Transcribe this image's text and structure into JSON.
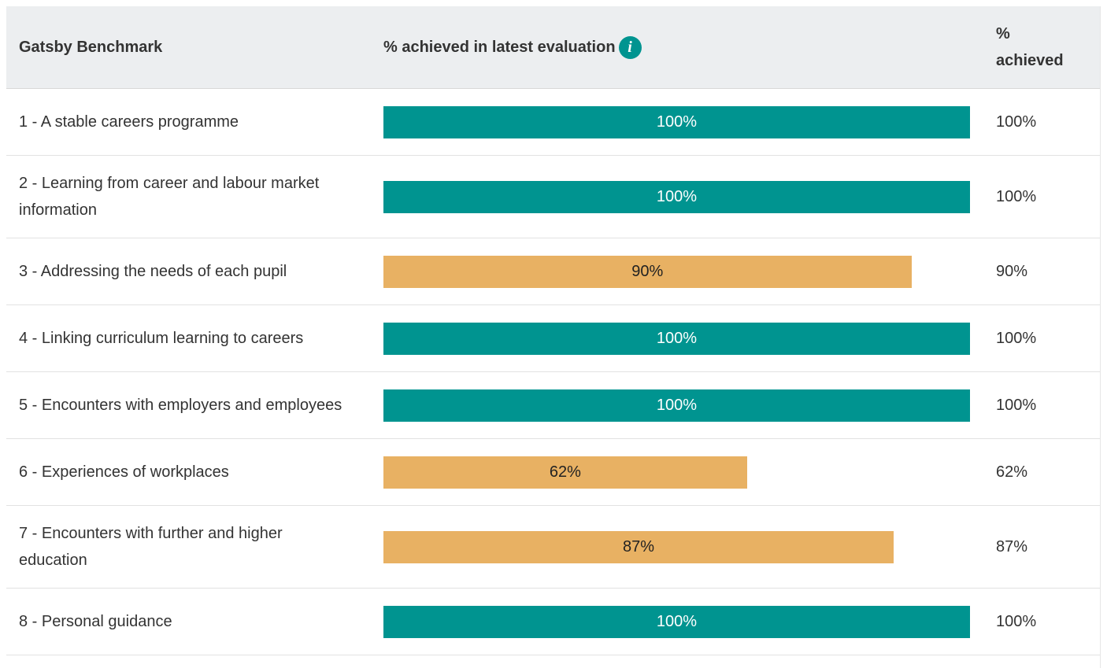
{
  "table": {
    "header": [
      "Gatsby Benchmark",
      "% achieved in latest evaluation",
      "% achieved"
    ],
    "xlim": [
      0,
      100
    ],
    "rows": [
      {
        "name": "1 - A stable careers programme",
        "value": 100,
        "label": "100%",
        "color": "#009490",
        "label_color": "#ffffff"
      },
      {
        "name": "2 - Learning from career and labour market information",
        "value": 100,
        "label": "100%",
        "color": "#009490",
        "label_color": "#ffffff"
      },
      {
        "name": "3 - Addressing the needs of each pupil",
        "value": 90,
        "label": "90%",
        "color": "#e8b163",
        "label_color": "#222222"
      },
      {
        "name": "4 - Linking curriculum learning to careers",
        "value": 100,
        "label": "100%",
        "color": "#009490",
        "label_color": "#ffffff"
      },
      {
        "name": "5 - Encounters with employers and employees",
        "value": 100,
        "label": "100%",
        "color": "#009490",
        "label_color": "#ffffff"
      },
      {
        "name": "6 - Experiences of workplaces",
        "value": 62,
        "label": "62%",
        "color": "#e8b163",
        "label_color": "#222222"
      },
      {
        "name": "7 - Encounters with further and higher education",
        "value": 87,
        "label": "87%",
        "color": "#e8b163",
        "label_color": "#222222"
      },
      {
        "name": "8 - Personal guidance",
        "value": 100,
        "label": "100%",
        "color": "#009490",
        "label_color": "#ffffff"
      }
    ]
  }
}
